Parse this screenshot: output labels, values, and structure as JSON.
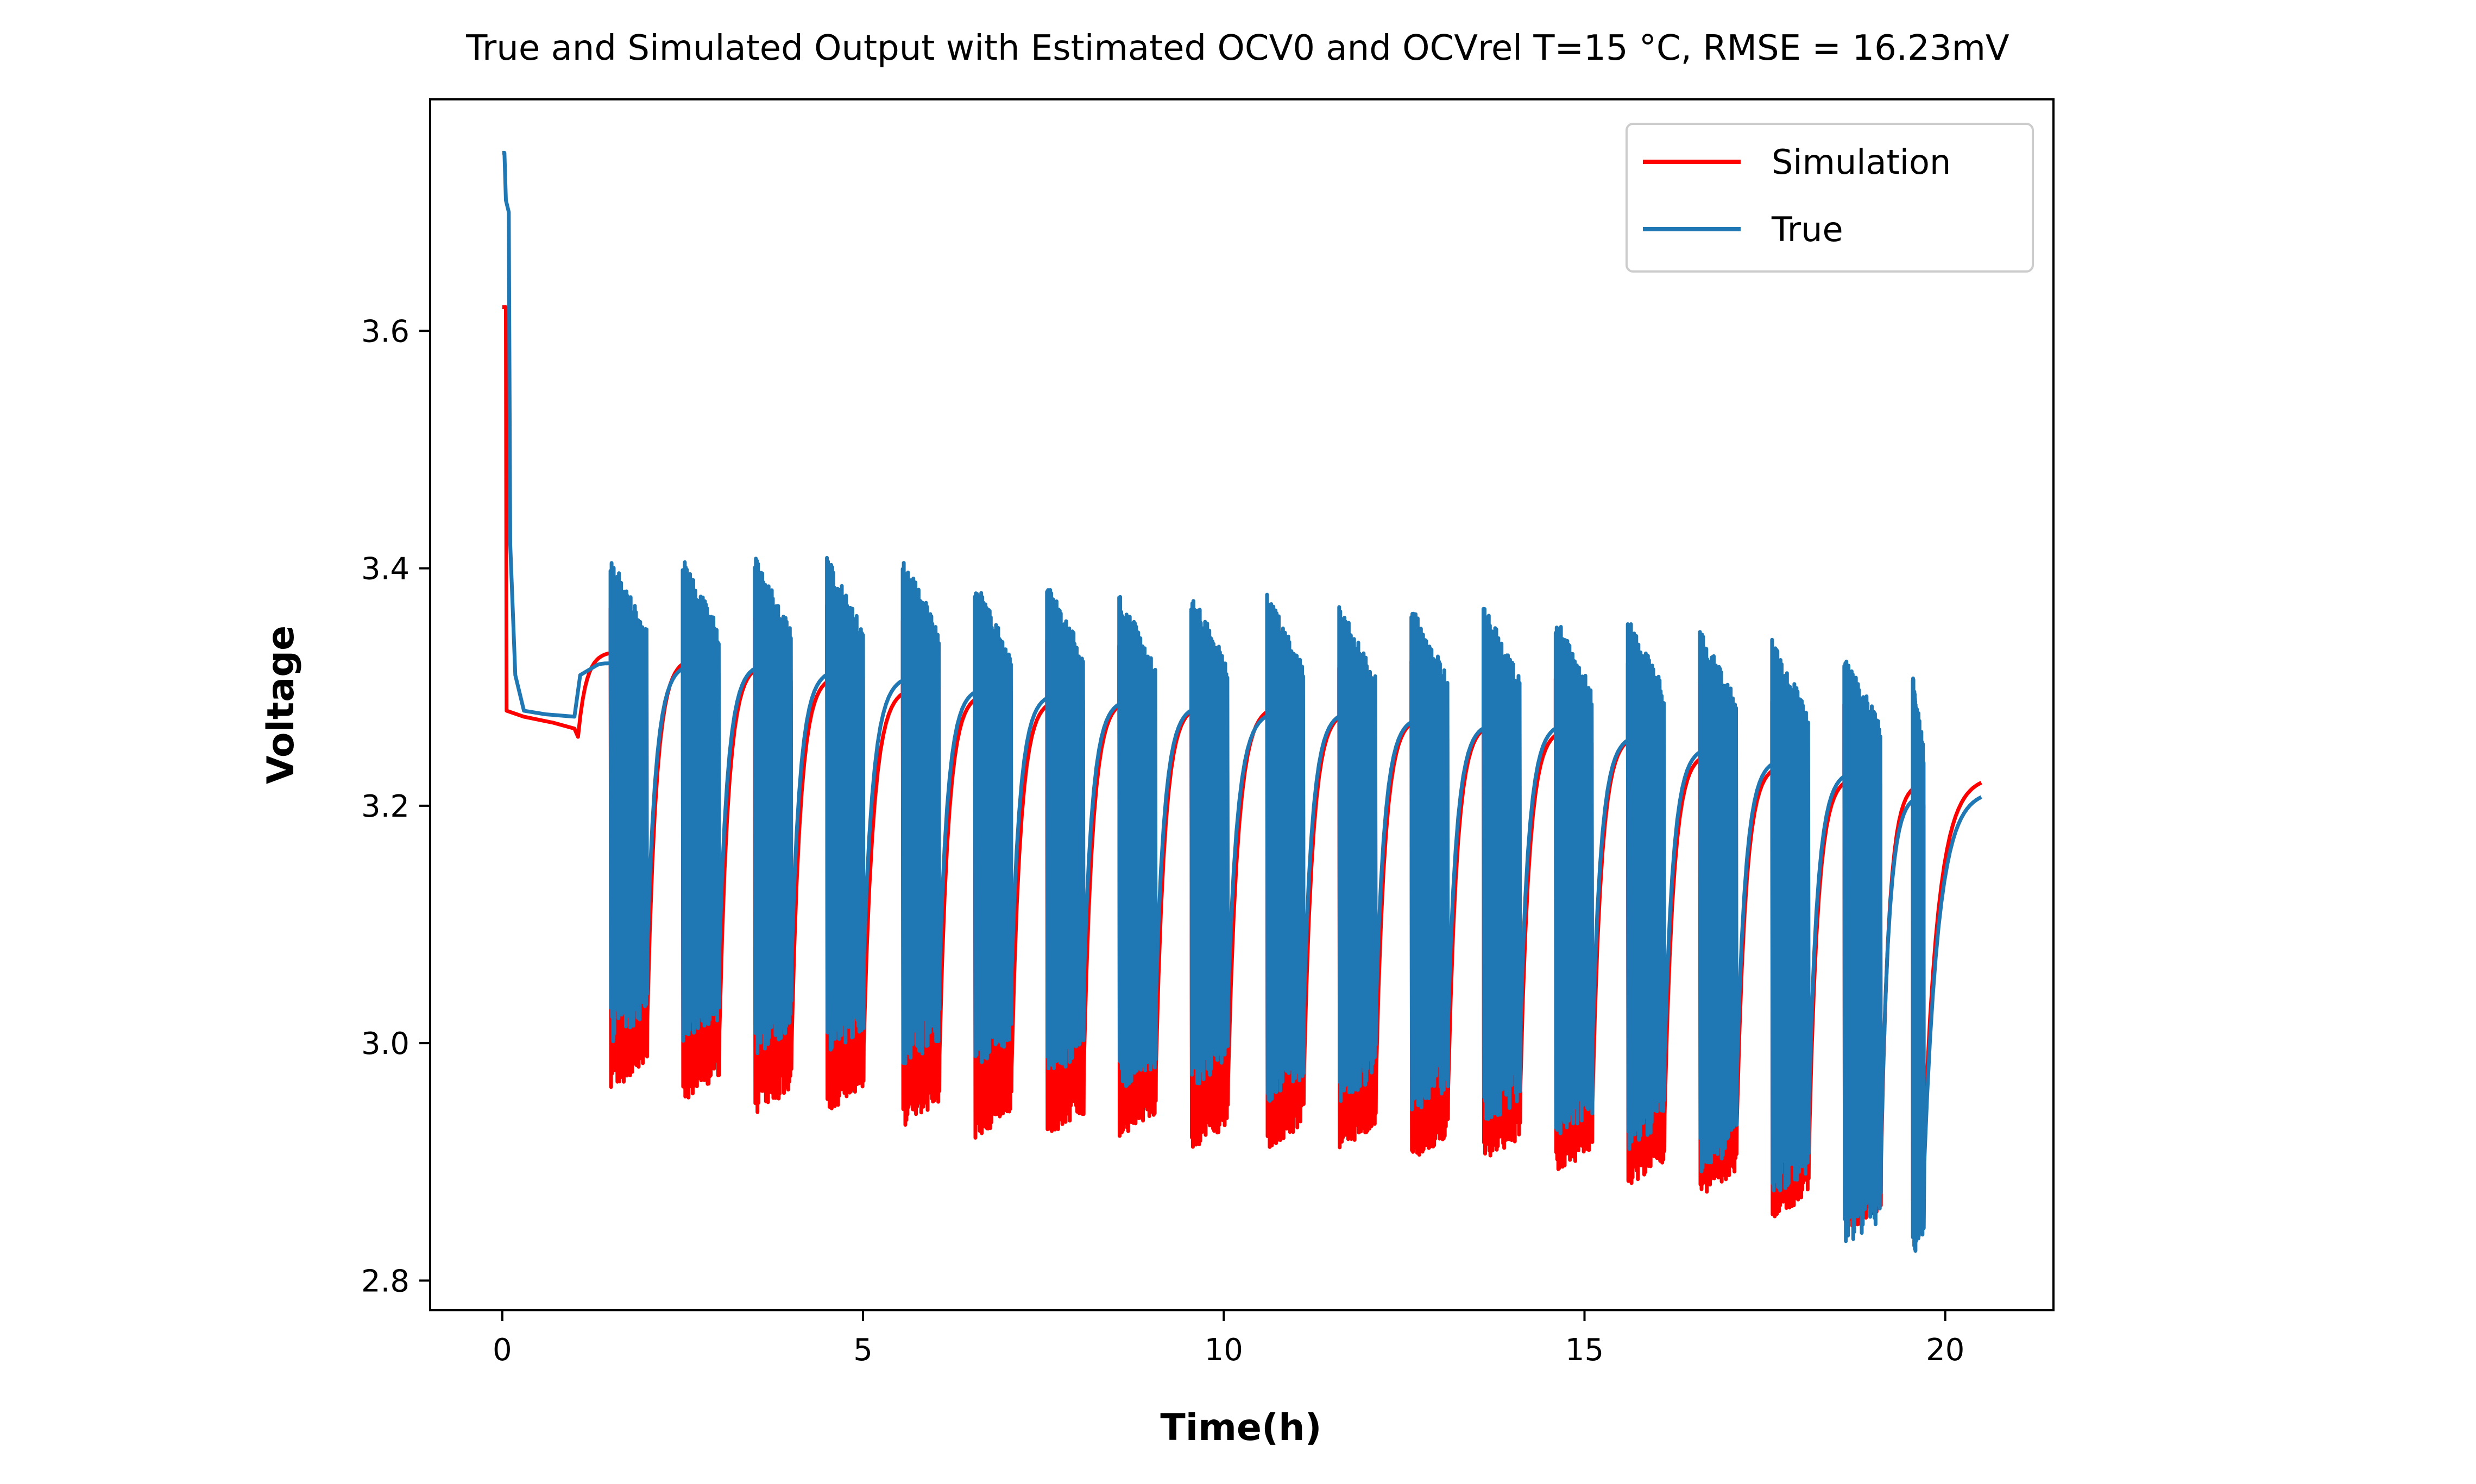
{
  "chart_data": {
    "type": "line",
    "title": "True and Simulated Output with Estimated OCV0 and OCVrel T=15 °C, RMSE = 16.23mV",
    "xlabel": "Time(h)",
    "ylabel": "Voltage",
    "xlim": [
      -1.0,
      21.5
    ],
    "ylim": [
      2.775,
      3.795
    ],
    "xticks": [
      0,
      5,
      10,
      15,
      20
    ],
    "yticks": [
      2.8,
      3.0,
      3.2,
      3.4,
      3.6
    ],
    "xtick_labels": [
      "0",
      "5",
      "10",
      "15",
      "20"
    ],
    "ytick_labels": [
      "2.8",
      "3.0",
      "3.2",
      "3.4",
      "3.6"
    ],
    "grid": false,
    "legend_position": "top-right",
    "colors": {
      "Simulation": "#ff0000",
      "True": "#1f77b4"
    },
    "pulse_groups": [
      {
        "start": 1.5,
        "end": 2.0,
        "true_max": 3.41,
        "true_min": 3.0,
        "sim_min": 2.96,
        "rest_true": 3.32,
        "rest_sim": 3.33
      },
      {
        "start": 2.5,
        "end": 3.0,
        "true_max": 3.41,
        "true_min": 3.0,
        "sim_min": 2.95,
        "rest_true": 3.32,
        "rest_sim": 3.325
      },
      {
        "start": 3.5,
        "end": 4.0,
        "true_max": 3.41,
        "true_min": 2.99,
        "sim_min": 2.94,
        "rest_true": 3.32,
        "rest_sim": 3.32
      },
      {
        "start": 4.5,
        "end": 5.0,
        "true_max": 3.41,
        "true_min": 2.99,
        "sim_min": 2.94,
        "rest_true": 3.315,
        "rest_sim": 3.31
      },
      {
        "start": 5.55,
        "end": 6.05,
        "true_max": 3.41,
        "true_min": 2.98,
        "sim_min": 2.93,
        "rest_true": 3.31,
        "rest_sim": 3.3
      },
      {
        "start": 6.55,
        "end": 7.05,
        "true_max": 3.39,
        "true_min": 2.98,
        "sim_min": 2.92,
        "rest_true": 3.3,
        "rest_sim": 3.295
      },
      {
        "start": 7.55,
        "end": 8.05,
        "true_max": 3.39,
        "true_min": 2.97,
        "sim_min": 2.92,
        "rest_true": 3.295,
        "rest_sim": 3.29
      },
      {
        "start": 8.55,
        "end": 9.05,
        "true_max": 3.38,
        "true_min": 2.96,
        "sim_min": 2.92,
        "rest_true": 3.29,
        "rest_sim": 3.29
      },
      {
        "start": 9.55,
        "end": 10.05,
        "true_max": 3.38,
        "true_min": 2.96,
        "sim_min": 2.91,
        "rest_true": 3.285,
        "rest_sim": 3.285
      },
      {
        "start": 10.6,
        "end": 11.1,
        "true_max": 3.38,
        "true_min": 2.95,
        "sim_min": 2.91,
        "rest_true": 3.28,
        "rest_sim": 3.285
      },
      {
        "start": 11.6,
        "end": 12.1,
        "true_max": 3.37,
        "true_min": 2.95,
        "sim_min": 2.91,
        "rest_true": 3.28,
        "rest_sim": 3.28
      },
      {
        "start": 12.6,
        "end": 13.1,
        "true_max": 3.37,
        "true_min": 2.94,
        "sim_min": 2.9,
        "rest_true": 3.275,
        "rest_sim": 3.275
      },
      {
        "start": 13.6,
        "end": 14.1,
        "true_max": 3.37,
        "true_min": 2.93,
        "sim_min": 2.9,
        "rest_true": 3.27,
        "rest_sim": 3.27
      },
      {
        "start": 14.6,
        "end": 15.1,
        "true_max": 3.36,
        "true_min": 2.92,
        "sim_min": 2.89,
        "rest_true": 3.27,
        "rest_sim": 3.265
      },
      {
        "start": 15.6,
        "end": 16.1,
        "true_max": 3.36,
        "true_min": 2.91,
        "sim_min": 2.88,
        "rest_true": 3.26,
        "rest_sim": 3.26
      },
      {
        "start": 16.6,
        "end": 17.1,
        "true_max": 3.35,
        "true_min": 2.89,
        "sim_min": 2.87,
        "rest_true": 3.25,
        "rest_sim": 3.245
      },
      {
        "start": 17.6,
        "end": 18.1,
        "true_max": 3.34,
        "true_min": 2.87,
        "sim_min": 2.85,
        "rest_true": 3.24,
        "rest_sim": 3.235
      },
      {
        "start": 18.6,
        "end": 19.1,
        "true_max": 3.33,
        "true_min": 2.83,
        "sim_min": 2.84,
        "rest_true": 3.23,
        "rest_sim": 3.225
      },
      {
        "start": 19.55,
        "end": 19.7,
        "true_max": 3.31,
        "true_min": 2.82,
        "sim_min": 2.86,
        "rest_true": 3.21,
        "rest_sim": 3.22
      }
    ],
    "series": [
      {
        "name": "Simulation",
        "color": "#ff0000",
        "points": [
          [
            0,
            3.62
          ],
          [
            0.05,
            3.62
          ],
          [
            0.06,
            3.28
          ],
          [
            0.3,
            3.275
          ],
          [
            0.7,
            3.27
          ],
          [
            1.0,
            3.265
          ],
          [
            1.05,
            3.26
          ],
          [
            20.5,
            3.225
          ]
        ]
      },
      {
        "name": "True",
        "color": "#1f77b4",
        "points": [
          [
            0,
            3.75
          ],
          [
            0.05,
            3.71
          ],
          [
            0.1,
            3.68
          ],
          [
            0.12,
            3.4
          ],
          [
            0.2,
            3.3
          ],
          [
            0.3,
            3.28
          ],
          [
            0.7,
            3.277
          ],
          [
            1.0,
            3.275
          ],
          [
            1.1,
            3.31
          ],
          [
            1.3,
            3.318
          ],
          [
            20.5,
            3.213
          ]
        ]
      }
    ]
  }
}
